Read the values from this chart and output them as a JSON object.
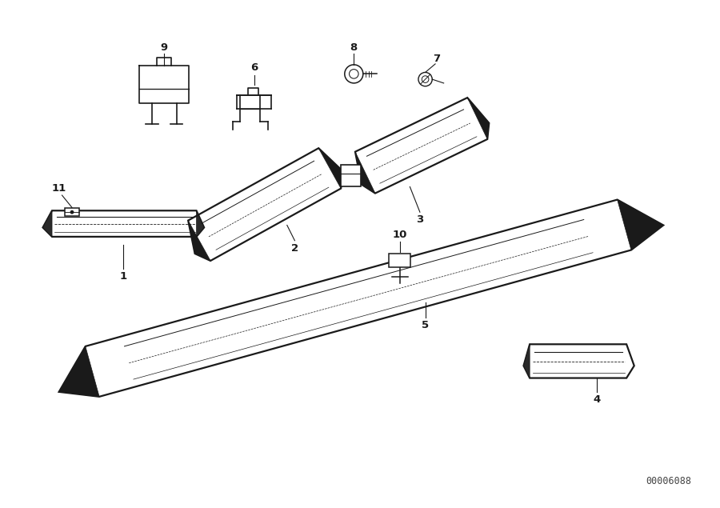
{
  "bg_color": "#ffffff",
  "line_color": "#1a1a1a",
  "fig_width": 9.0,
  "fig_height": 6.35,
  "dpi": 100,
  "watermark": "00006088",
  "xlim": [
    0,
    9
  ],
  "ylim": [
    0,
    6.35
  ]
}
